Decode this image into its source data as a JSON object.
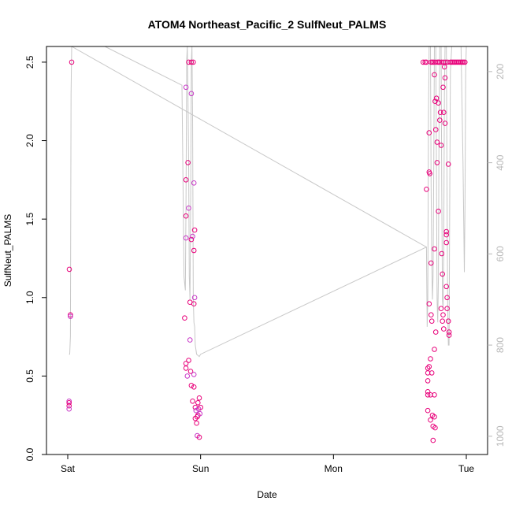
{
  "chart_data": {
    "type": "scatter",
    "title": "ATOM4 Northeast_Pacific_2 SulfNeut_PALMS",
    "xlabel": "Date",
    "ylabel": "SulfNeut_PALMS",
    "x_ticks": [
      {
        "value": 0,
        "label": "Sat"
      },
      {
        "value": 1,
        "label": "Sun"
      },
      {
        "value": 2,
        "label": "Mon"
      },
      {
        "value": 3,
        "label": "Tue"
      }
    ],
    "xlim": [
      -0.16,
      3.16
    ],
    "ylim": [
      0,
      2.6
    ],
    "y_ticks": [
      0.0,
      0.5,
      1.0,
      1.5,
      2.0,
      2.5
    ],
    "y_tick_labels": [
      "0.0",
      "0.5",
      "1.0",
      "1.5",
      "2.0",
      "2.5"
    ],
    "y2_lim": [
      1040,
      145
    ],
    "y2_ticks": [
      200,
      400,
      600,
      800,
      1000
    ],
    "y2_tick_labels": [
      "200",
      "400",
      "600",
      "800",
      "1000"
    ],
    "grid": false,
    "colors": {
      "point": "#e8007a",
      "point_alt": "#c838c8",
      "pressure_line": "#c8c8c8",
      "right_axis": "#b8b8b8"
    },
    "series": [
      {
        "values": [
          [
            0.01,
            0.34
          ],
          [
            0.01,
            0.33
          ],
          [
            0.01,
            0.31
          ],
          [
            0.01,
            0.29
          ],
          [
            0.012,
            1.18
          ],
          [
            0.02,
            0.89
          ],
          [
            0.02,
            0.88
          ],
          [
            0.03,
            2.5
          ],
          [
            0.88,
            0.87
          ],
          [
            0.89,
            2.34
          ],
          [
            0.89,
            1.75
          ],
          [
            0.89,
            1.52
          ],
          [
            0.89,
            1.38
          ],
          [
            0.89,
            0.58
          ],
          [
            0.89,
            0.55
          ],
          [
            0.9,
            0.5
          ],
          [
            0.905,
            1.86
          ],
          [
            0.91,
            2.5
          ],
          [
            0.91,
            1.57
          ],
          [
            0.91,
            0.6
          ],
          [
            0.92,
            0.97
          ],
          [
            0.92,
            0.73
          ],
          [
            0.925,
            0.53
          ],
          [
            0.93,
            2.5
          ],
          [
            0.93,
            2.3
          ],
          [
            0.93,
            1.37
          ],
          [
            0.93,
            0.44
          ],
          [
            0.94,
            1.39
          ],
          [
            0.94,
            0.34
          ],
          [
            0.945,
            2.5
          ],
          [
            0.95,
            1.73
          ],
          [
            0.95,
            1.3
          ],
          [
            0.95,
            0.96
          ],
          [
            0.95,
            0.51
          ],
          [
            0.95,
            0.43
          ],
          [
            0.955,
            1.43
          ],
          [
            0.955,
            1.0
          ],
          [
            0.96,
            0.3
          ],
          [
            0.96,
            0.23
          ],
          [
            0.965,
            0.28
          ],
          [
            0.97,
            0.2
          ],
          [
            0.975,
            0.24
          ],
          [
            0.975,
            0.12
          ],
          [
            0.98,
            0.33
          ],
          [
            0.98,
            0.25
          ],
          [
            0.985,
            0.29
          ],
          [
            0.99,
            0.36
          ],
          [
            0.99,
            0.11
          ],
          [
            0.995,
            0.26
          ],
          [
            1.0,
            0.3
          ],
          [
            2.7,
            1.69
          ],
          [
            2.71,
            0.55
          ],
          [
            2.71,
            0.52
          ],
          [
            2.71,
            0.47
          ],
          [
            2.71,
            0.4
          ],
          [
            2.71,
            0.38
          ],
          [
            2.71,
            0.28
          ],
          [
            2.72,
            2.05
          ],
          [
            2.72,
            1.8
          ],
          [
            2.72,
            0.96
          ],
          [
            2.72,
            0.56
          ],
          [
            2.725,
            1.79
          ],
          [
            2.73,
            0.61
          ],
          [
            2.73,
            0.38
          ],
          [
            2.73,
            0.22
          ],
          [
            2.735,
            2.5
          ],
          [
            2.735,
            1.22
          ],
          [
            2.735,
            0.89
          ],
          [
            2.74,
            0.85
          ],
          [
            2.74,
            0.52
          ],
          [
            2.745,
            0.25
          ],
          [
            2.75,
            0.18
          ],
          [
            2.75,
            0.09
          ],
          [
            2.755,
            2.5
          ],
          [
            2.76,
            2.42
          ],
          [
            2.76,
            1.31
          ],
          [
            2.76,
            0.67
          ],
          [
            2.76,
            0.38
          ],
          [
            2.76,
            0.24
          ],
          [
            2.765,
            2.25
          ],
          [
            2.765,
            0.17
          ],
          [
            2.77,
            2.07
          ],
          [
            2.77,
            0.78
          ],
          [
            2.775,
            2.27
          ],
          [
            2.78,
            1.86
          ],
          [
            2.78,
            1.99
          ],
          [
            2.785,
            2.5
          ],
          [
            2.79,
            1.55
          ],
          [
            2.79,
            2.24
          ],
          [
            2.8,
            2.5
          ],
          [
            2.8,
            2.13
          ],
          [
            2.805,
            2.18
          ],
          [
            2.81,
            1.97
          ],
          [
            2.81,
            0.93
          ],
          [
            2.815,
            2.5
          ],
          [
            2.815,
            1.28
          ],
          [
            2.82,
            1.15
          ],
          [
            2.82,
            0.85
          ],
          [
            2.825,
            2.34
          ],
          [
            2.825,
            0.89
          ],
          [
            2.83,
            2.5
          ],
          [
            2.83,
            2.18
          ],
          [
            2.83,
            0.8
          ],
          [
            2.835,
            2.47
          ],
          [
            2.84,
            2.4
          ],
          [
            2.84,
            2.11
          ],
          [
            2.845,
            2.5
          ],
          [
            2.85,
            1.42
          ],
          [
            2.85,
            1.4
          ],
          [
            2.85,
            1.35
          ],
          [
            2.85,
            1.07
          ],
          [
            2.855,
            1.0
          ],
          [
            2.855,
            0.93
          ],
          [
            2.86,
            2.5
          ],
          [
            2.865,
            1.85
          ],
          [
            2.865,
            0.85
          ],
          [
            2.87,
            0.78
          ],
          [
            2.87,
            0.76
          ],
          [
            2.88,
            2.5
          ],
          [
            2.89,
            2.5
          ],
          [
            2.9,
            2.5
          ],
          [
            2.91,
            2.5
          ],
          [
            2.92,
            2.5
          ],
          [
            2.93,
            2.5
          ],
          [
            2.94,
            2.5
          ],
          [
            2.95,
            2.5
          ],
          [
            2.96,
            2.5
          ],
          [
            2.97,
            2.5
          ],
          [
            2.98,
            2.5
          ],
          [
            2.99,
            2.5
          ],
          [
            2.675,
            2.5
          ],
          [
            2.69,
            2.5
          ],
          [
            2.7,
            2.5
          ],
          [
            2.745,
            2.5
          ],
          [
            2.77,
            2.5
          ],
          [
            2.79,
            2.5
          ]
        ]
      }
    ],
    "pressure_line": [
      [
        0.01,
        820
      ],
      [
        0.015,
        820
      ],
      [
        0.02,
        780
      ],
      [
        0.025,
        250
      ],
      [
        0.03,
        145
      ],
      [
        0.28,
        145
      ],
      [
        0.86,
        230
      ],
      [
        0.875,
        650
      ],
      [
        0.885,
        680
      ],
      [
        0.89,
        500
      ],
      [
        0.895,
        175
      ],
      [
        0.9,
        145
      ],
      [
        0.905,
        250
      ],
      [
        0.91,
        400
      ],
      [
        0.915,
        650
      ],
      [
        0.92,
        700
      ],
      [
        0.925,
        500
      ],
      [
        0.93,
        180
      ],
      [
        0.935,
        145
      ],
      [
        0.94,
        300
      ],
      [
        0.945,
        700
      ],
      [
        0.95,
        750
      ],
      [
        0.955,
        760
      ],
      [
        0.96,
        800
      ],
      [
        0.97,
        820
      ],
      [
        0.99,
        825
      ],
      [
        1.0,
        820
      ],
      [
        2.7,
        585
      ],
      [
        2.705,
        760
      ],
      [
        2.71,
        700
      ],
      [
        2.715,
        300
      ],
      [
        2.72,
        145
      ],
      [
        2.73,
        145
      ],
      [
        2.735,
        450
      ],
      [
        2.74,
        620
      ],
      [
        2.745,
        700
      ],
      [
        2.75,
        650
      ],
      [
        2.755,
        400
      ],
      [
        2.76,
        145
      ],
      [
        2.77,
        145
      ],
      [
        2.775,
        420
      ],
      [
        2.78,
        700
      ],
      [
        2.785,
        750
      ],
      [
        2.79,
        650
      ],
      [
        2.795,
        300
      ],
      [
        2.8,
        145
      ],
      [
        2.81,
        145
      ],
      [
        2.815,
        450
      ],
      [
        2.82,
        700
      ],
      [
        2.825,
        720
      ],
      [
        2.83,
        600
      ],
      [
        2.835,
        250
      ],
      [
        2.84,
        145
      ],
      [
        2.85,
        145
      ],
      [
        2.855,
        500
      ],
      [
        2.86,
        720
      ],
      [
        2.865,
        800
      ],
      [
        2.87,
        800
      ],
      [
        2.875,
        500
      ],
      [
        2.88,
        200
      ],
      [
        2.89,
        145
      ],
      [
        2.96,
        145
      ],
      [
        2.975,
        400
      ],
      [
        2.985,
        640
      ],
      [
        2.99,
        500
      ],
      [
        2.995,
        200
      ],
      [
        3.0,
        145
      ]
    ],
    "pressure_line_extra": [
      [
        0.03,
        145
      ],
      [
        2.7,
        585
      ]
    ]
  }
}
